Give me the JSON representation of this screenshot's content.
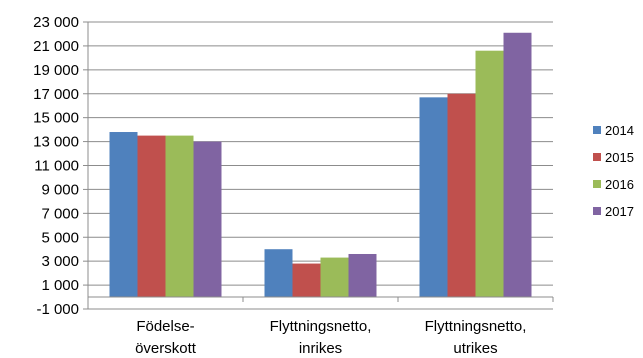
{
  "chart_data": {
    "type": "bar",
    "title": "",
    "xlabel": "",
    "ylabel": "",
    "categories": [
      [
        "Födelse-",
        "överskott"
      ],
      [
        "Flyttningsnetto,",
        "inrikes"
      ],
      [
        "Flyttningsnetto,",
        "utrikes"
      ]
    ],
    "series": [
      {
        "name": "2014",
        "color": "#4F81BD",
        "values": [
          13800,
          4000,
          16700
        ]
      },
      {
        "name": "2015",
        "color": "#C0504D",
        "values": [
          13500,
          2800,
          17000
        ]
      },
      {
        "name": "2016",
        "color": "#9BBB59",
        "values": [
          13500,
          3300,
          20600
        ]
      },
      {
        "name": "2017",
        "color": "#8064A2",
        "values": [
          13000,
          3600,
          22100
        ]
      }
    ],
    "ylim": [
      -1000,
      23000
    ],
    "y_ticks": [
      -1000,
      1000,
      3000,
      5000,
      7000,
      9000,
      11000,
      13000,
      15000,
      17000,
      19000,
      21000,
      23000
    ],
    "y_tick_labels": [
      "-1 000",
      "1 000",
      "3 000",
      "5 000",
      "7 000",
      "9 000",
      "11 000",
      "13 000",
      "15 000",
      "17 000",
      "19 000",
      "21 000",
      "23 000"
    ],
    "grid": true,
    "legend_position": "right"
  }
}
